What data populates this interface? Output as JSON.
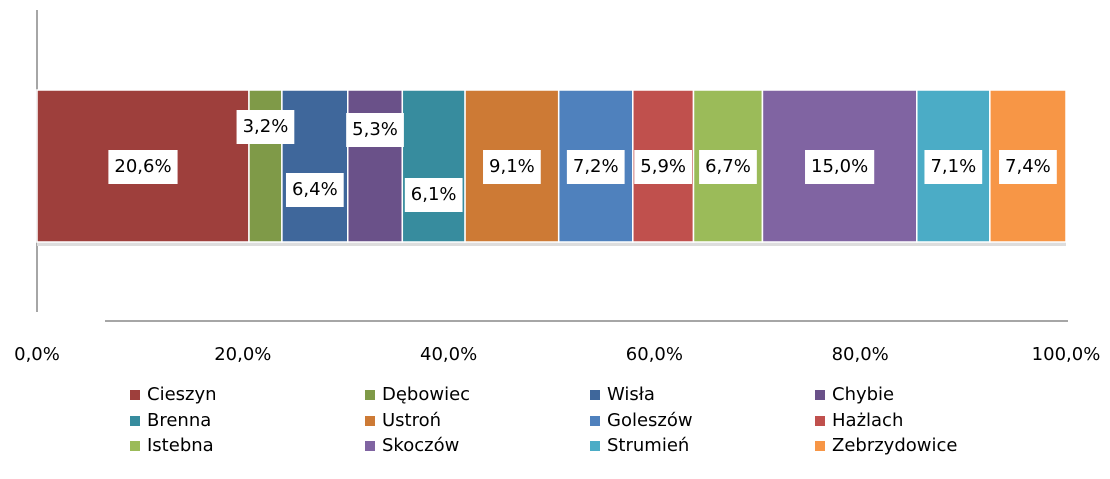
{
  "chart_data": {
    "type": "stacked-bar-horizontal",
    "series": [
      {
        "name": "Cieszyn",
        "color": "#9e3f3c",
        "values": [
          20.6
        ],
        "value_labels": [
          "20,6%"
        ]
      },
      {
        "name": "Dębowiec",
        "color": "#7f9a48",
        "values": [
          3.2
        ],
        "value_labels": [
          "3,2%"
        ]
      },
      {
        "name": "Wisła",
        "color": "#3f679b",
        "values": [
          6.4
        ],
        "value_labels": [
          "6,4%"
        ]
      },
      {
        "name": "Chybie",
        "color": "#6a5189",
        "values": [
          5.3
        ],
        "value_labels": [
          "5,3%"
        ]
      },
      {
        "name": "Brenna",
        "color": "#378c9e",
        "values": [
          6.1
        ],
        "value_labels": [
          "6,1%"
        ]
      },
      {
        "name": "Ustroń",
        "color": "#cd7a35",
        "values": [
          9.1
        ],
        "value_labels": [
          "9,1%"
        ]
      },
      {
        "name": "Goleszów",
        "color": "#4f81bd",
        "values": [
          7.2
        ],
        "value_labels": [
          "7,2%"
        ]
      },
      {
        "name": "Hażlach",
        "color": "#c0504d",
        "values": [
          5.9
        ],
        "value_labels": [
          "5,9%"
        ]
      },
      {
        "name": "Istebna",
        "color": "#9bbb59",
        "values": [
          6.7
        ],
        "value_labels": [
          "6,7%"
        ]
      },
      {
        "name": "Skoczów",
        "color": "#8064a2",
        "values": [
          15.0
        ],
        "value_labels": [
          "15,0%"
        ]
      },
      {
        "name": "Strumień",
        "color": "#4bacc6",
        "values": [
          7.1
        ],
        "value_labels": [
          "7,1%"
        ]
      },
      {
        "name": "Zebrzydowice",
        "color": "#f79646",
        "values": [
          7.4
        ],
        "value_labels": [
          "7,4%"
        ]
      }
    ],
    "xlim": [
      0,
      100
    ],
    "xticks": [
      {
        "value": 0,
        "label": "0,0%"
      },
      {
        "value": 20,
        "label": "20,0%"
      },
      {
        "value": 40,
        "label": "40,0%"
      },
      {
        "value": 60,
        "label": "60,0%"
      },
      {
        "value": 80,
        "label": "80,0%"
      },
      {
        "value": 100,
        "label": "100,0%"
      }
    ],
    "legend": "bottom"
  }
}
